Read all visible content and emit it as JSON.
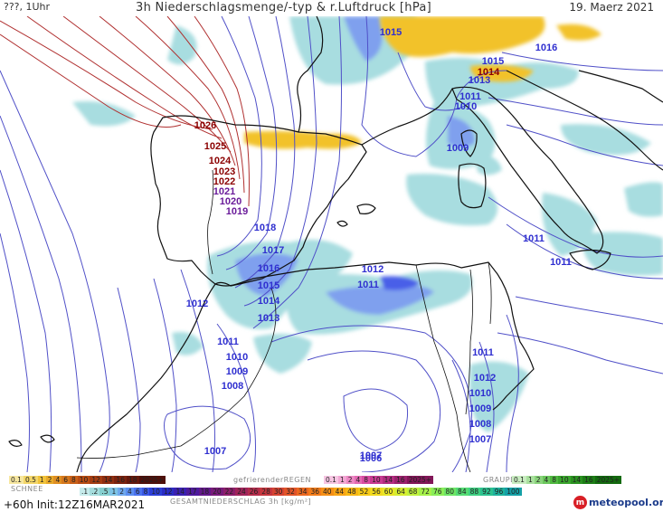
{
  "header": {
    "left_label": "???, 1Uhr",
    "title": "3h Niederschlagsmenge/-typ & r.Luftdruck [hPa]",
    "date": "19. Maerz 2021"
  },
  "map": {
    "pressure_labels": [
      {
        "value": "1026",
        "color": "#8b0000"
      },
      {
        "value": "1025",
        "color": "#8b0000"
      },
      {
        "value": "1024",
        "color": "#8b0000"
      },
      {
        "value": "1023",
        "color": "#8b0000"
      },
      {
        "value": "1022",
        "color": "#8b0000"
      },
      {
        "value": "1021",
        "color": "#6a1b9a"
      },
      {
        "value": "1020",
        "color": "#6a1b9a"
      },
      {
        "value": "1019",
        "color": "#6a1b9a"
      },
      {
        "value": "1018",
        "color": "#2f2fd0"
      },
      {
        "value": "1017",
        "color": "#2f2fd0"
      },
      {
        "value": "1016",
        "color": "#2f2fd0"
      },
      {
        "value": "1015",
        "color": "#2f2fd0"
      },
      {
        "value": "1014",
        "color": "#2f2fd0"
      },
      {
        "value": "1013",
        "color": "#2f2fd0"
      },
      {
        "value": "1012",
        "color": "#2f2fd0"
      },
      {
        "value": "1011",
        "color": "#2f2fd0"
      },
      {
        "value": "1010",
        "color": "#2f2fd0"
      },
      {
        "value": "1009",
        "color": "#2f2fd0"
      },
      {
        "value": "1008",
        "color": "#2f2fd0"
      },
      {
        "value": "1007",
        "color": "#2f2fd0"
      },
      {
        "value": "1012",
        "color": "#2f2fd0"
      },
      {
        "value": "1011",
        "color": "#2f2fd0"
      },
      {
        "value": "1011",
        "color": "#2f2fd0"
      },
      {
        "value": "1007",
        "color": "#2f2fd0"
      },
      {
        "value": "1011",
        "color": "#2f2fd0"
      },
      {
        "value": "1015",
        "color": "#2f2fd0"
      },
      {
        "value": "1016",
        "color": "#2f2fd0"
      },
      {
        "value": "1015",
        "color": "#2f2fd0"
      },
      {
        "value": "1014",
        "color": "#8b0000"
      },
      {
        "value": "1013",
        "color": "#2f2fd0"
      },
      {
        "value": "1011",
        "color": "#2f2fd0"
      },
      {
        "value": "1010",
        "color": "#2f2fd0"
      },
      {
        "value": "1009",
        "color": "#2f2fd0"
      },
      {
        "value": "1011",
        "color": "#2f2fd0"
      },
      {
        "value": "1012",
        "color": "#2f2fd0"
      },
      {
        "value": "1010",
        "color": "#2f2fd0"
      },
      {
        "value": "1009",
        "color": "#2f2fd0"
      },
      {
        "value": "1008",
        "color": "#2f2fd0"
      },
      {
        "value": "1007",
        "color": "#2f2fd0"
      },
      {
        "value": "1006",
        "color": "#2f2fd0"
      }
    ],
    "colors": {
      "isobar_high": "#b03030",
      "isobar_low": "#5050c8",
      "coast": "#111111",
      "rain_light": "#a8dde0",
      "rain_mid": "#7fa0ee",
      "rain_heavy": "#4a5ee8",
      "snow": "#f2c22b",
      "freezing": "#e79ad0"
    }
  },
  "legend": {
    "snow_label": "SCHNEE",
    "snow_scale": [
      "0.1",
      "0.5",
      "1",
      "2",
      "4",
      "6",
      "8",
      "10",
      "12",
      "14",
      "16",
      "18",
      "2025+"
    ],
    "freezing_label": "gefrierenderREGEN",
    "freezing_scale": [
      "0.1",
      "1",
      "2",
      "4",
      "8",
      "10",
      "14",
      "16",
      "2025+"
    ],
    "graupel_label": "GRAUPEL",
    "graupel_scale": [
      "0.1",
      "1",
      "2",
      "4",
      "8",
      "10",
      "14",
      "16",
      "2025+"
    ],
    "total_label": "GESAMTNIEDERSCHLAG 3h [kg/m²]",
    "total_scale": [
      ".1",
      ".2",
      ".5",
      "1",
      "2",
      "4",
      "6",
      "8",
      "10",
      "12",
      "14",
      "17",
      "18",
      "20",
      "22",
      "24",
      "26",
      "28",
      "30",
      "32",
      "34",
      "36",
      "40",
      "44",
      "48",
      "52",
      "56",
      "60",
      "64",
      "68",
      "72",
      "76",
      "80",
      "84",
      "88",
      "92",
      "96",
      "100"
    ],
    "snow_colors": [
      "#f7e7a0",
      "#f3d66a",
      "#f0c23a",
      "#e8a92a",
      "#df8f22",
      "#d5771c",
      "#c96018",
      "#b84c14",
      "#a43c12",
      "#8f2e10",
      "#7a220e",
      "#64180c",
      "#4e100a"
    ],
    "freezing_colors": [
      "#f7c6e3",
      "#f2a7d4",
      "#ec88c4",
      "#e36ab3",
      "#d94ca2",
      "#c83a92",
      "#b22c80",
      "#9a206c",
      "#821658"
    ],
    "graupel_colors": [
      "#c8ecc0",
      "#a9e09e",
      "#8ad47c",
      "#6bc75c",
      "#4fb83f",
      "#3aa52d",
      "#2a9120",
      "#1d7d16",
      "#136a0f"
    ],
    "total_colors": [
      "#c7ecec",
      "#a6dede",
      "#86d0d0",
      "#7ec4e6",
      "#6fa8ee",
      "#5c8ef0",
      "#4a72ee",
      "#3a58e6",
      "#2c3fd8",
      "#2a2cc4",
      "#3a20b0",
      "#4e1a9c",
      "#62188a",
      "#781a7a",
      "#8c1e6a",
      "#a0245a",
      "#b42c4c",
      "#c6363e",
      "#d64432",
      "#e25428",
      "#ec6820",
      "#f27c1a",
      "#f69016",
      "#f8a414",
      "#f8b814",
      "#f6ca18",
      "#f2da1e",
      "#e8e626",
      "#d6ee30",
      "#c0f23c",
      "#a6f24a",
      "#8aee58",
      "#6ee666",
      "#54dc74",
      "#3ed082",
      "#2cc290",
      "#1eb29c",
      "#14a0a6"
    ]
  },
  "footer": {
    "run_info": "+60h  Init:12Z16MAR2021",
    "brand": "meteopool.org"
  }
}
